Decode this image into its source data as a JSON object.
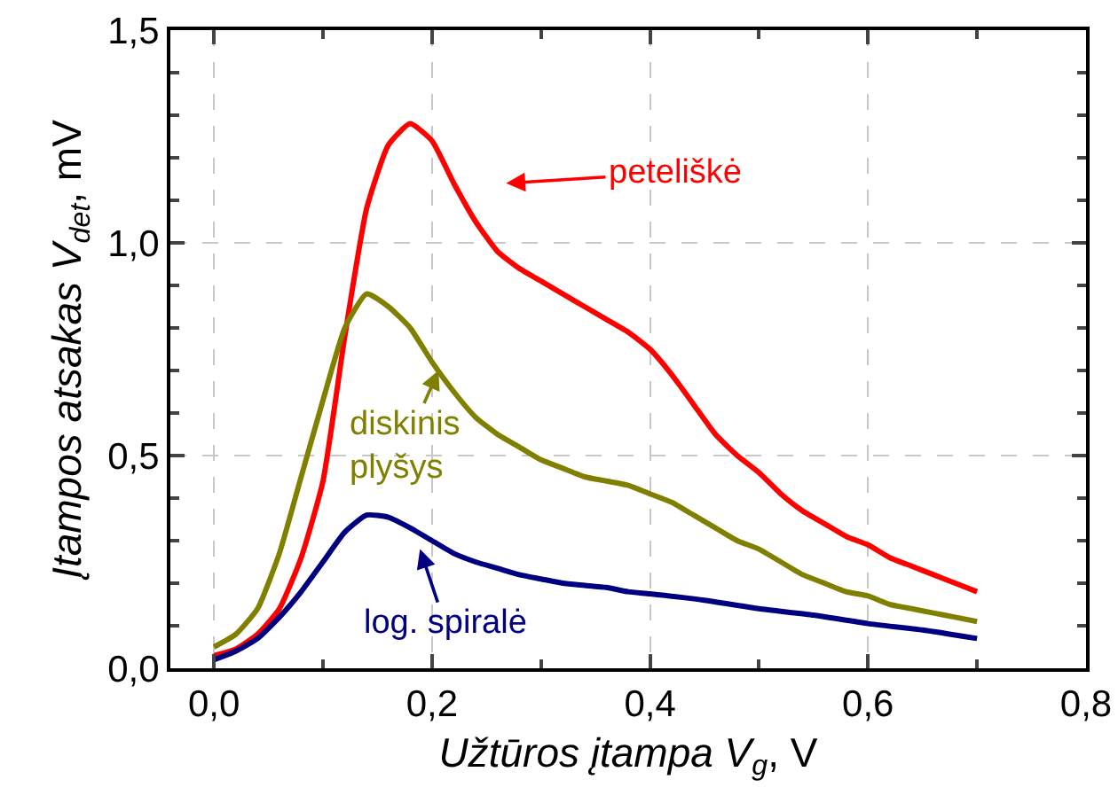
{
  "chart_data": {
    "type": "line",
    "xlabel": "Užtūros įtampa V$_{g}$, V",
    "ylabel": "Įtampos atsakas V$_{det}$, mV",
    "xlim": [
      -0.04,
      0.8
    ],
    "ylim": [
      0,
      1.5
    ],
    "xticks": [
      {
        "value": 0,
        "label": "0,0"
      },
      {
        "value": 0.2,
        "label": "0,2"
      },
      {
        "value": 0.4,
        "label": "0,4"
      },
      {
        "value": 0.6,
        "label": "0,6"
      },
      {
        "value": 0.8,
        "label": "0,8"
      }
    ],
    "yticks": [
      {
        "value": 0,
        "label": "0,0"
      },
      {
        "value": 0.5,
        "label": "0,5"
      },
      {
        "value": 1,
        "label": "1,0"
      },
      {
        "value": 1.5,
        "label": "1,5"
      }
    ],
    "grid": true,
    "marker": "none",
    "line_style": "solid",
    "series": [
      {
        "color": "#ff0000",
        "x": [
          0,
          0.02,
          0.04,
          0.06,
          0.08,
          0.1,
          0.12,
          0.14,
          0.16,
          0.18,
          0.2,
          0.22,
          0.24,
          0.26,
          0.28,
          0.3,
          0.32,
          0.34,
          0.36,
          0.38,
          0.4,
          0.42,
          0.44,
          0.46,
          0.48,
          0.5,
          0.52,
          0.54,
          0.56,
          0.58,
          0.6,
          0.62,
          0.64,
          0.66,
          0.68,
          0.7
        ],
        "values": [
          0.03,
          0.045,
          0.08,
          0.14,
          0.26,
          0.44,
          0.78,
          1.08,
          1.23,
          1.28,
          1.24,
          1.14,
          1.05,
          0.98,
          0.94,
          0.91,
          0.88,
          0.85,
          0.82,
          0.79,
          0.75,
          0.69,
          0.62,
          0.55,
          0.5,
          0.46,
          0.41,
          0.37,
          0.34,
          0.31,
          0.29,
          0.26,
          0.24,
          0.22,
          0.2,
          0.18
        ]
      },
      {
        "color": "#808000",
        "x": [
          0,
          0.02,
          0.04,
          0.06,
          0.08,
          0.1,
          0.12,
          0.14,
          0.16,
          0.18,
          0.2,
          0.22,
          0.24,
          0.26,
          0.28,
          0.3,
          0.32,
          0.34,
          0.36,
          0.38,
          0.4,
          0.42,
          0.44,
          0.46,
          0.48,
          0.5,
          0.52,
          0.54,
          0.56,
          0.58,
          0.6,
          0.62,
          0.64,
          0.66,
          0.68,
          0.7
        ],
        "values": [
          0.05,
          0.08,
          0.14,
          0.27,
          0.45,
          0.63,
          0.8,
          0.88,
          0.85,
          0.8,
          0.72,
          0.65,
          0.59,
          0.55,
          0.52,
          0.49,
          0.47,
          0.45,
          0.44,
          0.43,
          0.41,
          0.39,
          0.36,
          0.33,
          0.3,
          0.28,
          0.25,
          0.22,
          0.2,
          0.18,
          0.17,
          0.15,
          0.14,
          0.13,
          0.12,
          0.11
        ]
      },
      {
        "color": "#000080",
        "x": [
          0,
          0.02,
          0.04,
          0.06,
          0.08,
          0.1,
          0.12,
          0.14,
          0.16,
          0.18,
          0.2,
          0.22,
          0.24,
          0.26,
          0.28,
          0.3,
          0.32,
          0.34,
          0.36,
          0.38,
          0.4,
          0.45,
          0.5,
          0.55,
          0.6,
          0.65,
          0.7
        ],
        "values": [
          0.02,
          0.04,
          0.07,
          0.12,
          0.18,
          0.25,
          0.32,
          0.36,
          0.355,
          0.33,
          0.3,
          0.27,
          0.25,
          0.235,
          0.22,
          0.21,
          0.2,
          0.195,
          0.19,
          0.18,
          0.175,
          0.16,
          0.14,
          0.125,
          0.105,
          0.09,
          0.07
        ]
      }
    ],
    "annotations": [
      "peteliškė",
      "diskinis\nplyšys",
      "log. spiralė"
    ]
  }
}
